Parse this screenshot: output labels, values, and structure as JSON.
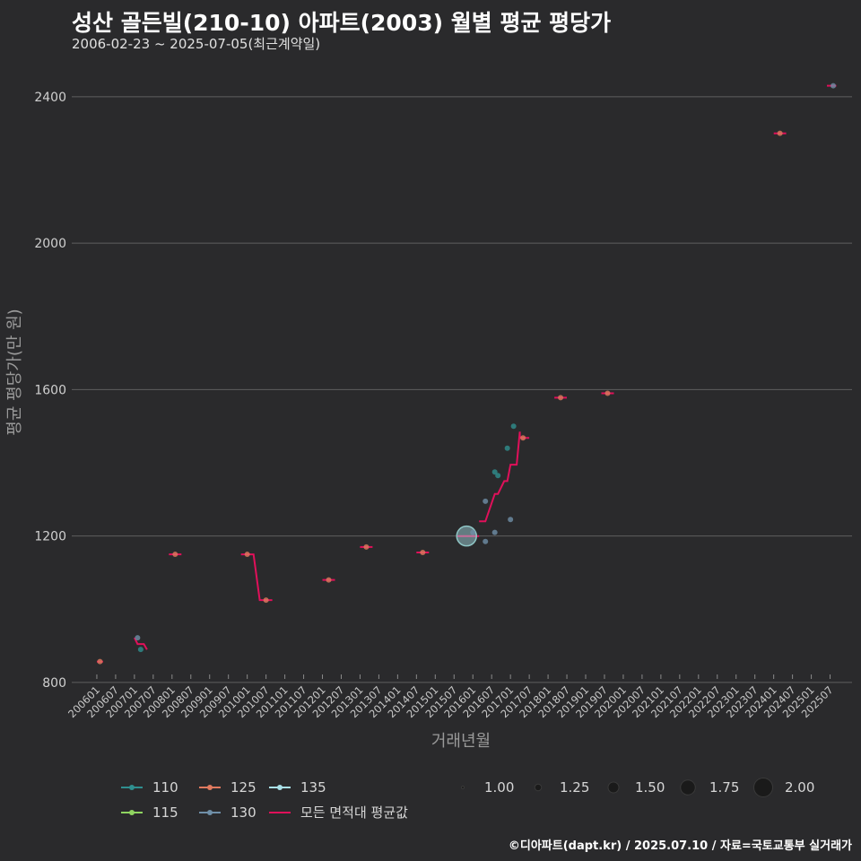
{
  "title": "성산 골든빌(210-10) 아파트(2003) 월별 평균 평당가",
  "subtitle": "2006-02-23 ~ 2025-07-05(최근계약일)",
  "credit": "©디아파트(dapt.kr) / 2025.07.10 / 자료=국토교통부 실거래가",
  "colors": {
    "background": "#2a2a2c",
    "grid": "#5f5f5f",
    "avg_line": "#e0105a",
    "110": "#2f8f8f",
    "115": "#8fd460",
    "125": "#e07a5f",
    "130": "#6f8fa8",
    "135": "#a9e0e8"
  },
  "chart_data": {
    "type": "scatter",
    "xlabel": "거래년월",
    "ylabel": "평균 평당가(만 원)",
    "ylim": [
      790,
      2505
    ],
    "yticks": [
      800,
      1200,
      1600,
      2000,
      2400
    ],
    "x_range_months": [
      -8,
      241
    ],
    "x_tick_labels": [
      "200601",
      "200607",
      "200701",
      "200707",
      "200801",
      "200807",
      "200901",
      "200907",
      "201001",
      "201007",
      "201101",
      "201107",
      "201201",
      "201207",
      "201301",
      "201307",
      "201401",
      "201407",
      "201501",
      "201507",
      "201601",
      "201607",
      "201701",
      "201707",
      "201801",
      "201807",
      "201901",
      "201907",
      "202001",
      "202007",
      "202101",
      "202107",
      "202201",
      "202207",
      "202301",
      "202307",
      "202401",
      "202407",
      "202501",
      "202507"
    ],
    "color_legend": [
      {
        "name": "110",
        "series": "110"
      },
      {
        "name": "115",
        "series": "115"
      },
      {
        "name": "125",
        "series": "125"
      },
      {
        "name": "130",
        "series": "130"
      },
      {
        "name": "135",
        "series": "135"
      },
      {
        "name": "모든 면적대 평균값",
        "series": "avg"
      }
    ],
    "size_legend": [
      1.0,
      1.25,
      1.5,
      1.75,
      2.0
    ],
    "size_legend_labels": [
      "1.00",
      "1.25",
      "1.50",
      "1.75",
      "2.00"
    ],
    "points": [
      {
        "series": "125",
        "month": 1,
        "value": 857,
        "count": 1
      },
      {
        "series": "130",
        "month": 13,
        "value": 922,
        "count": 1
      },
      {
        "series": "110",
        "month": 14,
        "value": 890,
        "count": 1
      },
      {
        "series": "125",
        "month": 25,
        "value": 1150,
        "count": 1
      },
      {
        "series": "125",
        "month": 48,
        "value": 1150,
        "count": 1
      },
      {
        "series": "125",
        "month": 54,
        "value": 1025,
        "count": 1
      },
      {
        "series": "125",
        "month": 74,
        "value": 1080,
        "count": 1
      },
      {
        "series": "125",
        "month": 86,
        "value": 1170,
        "count": 1
      },
      {
        "series": "125",
        "month": 104,
        "value": 1155,
        "count": 1
      },
      {
        "series": "135",
        "month": 118,
        "value": 1200,
        "count": 2
      },
      {
        "series": "130",
        "month": 120,
        "value": 1210,
        "count": 1
      },
      {
        "series": "130",
        "month": 124,
        "value": 1185,
        "count": 1
      },
      {
        "series": "130",
        "month": 124,
        "value": 1295,
        "count": 1
      },
      {
        "series": "130",
        "month": 127,
        "value": 1210,
        "count": 1
      },
      {
        "series": "110",
        "month": 127,
        "value": 1375,
        "count": 1
      },
      {
        "series": "110",
        "month": 128,
        "value": 1365,
        "count": 1
      },
      {
        "series": "110",
        "month": 131,
        "value": 1440,
        "count": 1
      },
      {
        "series": "130",
        "month": 132,
        "value": 1245,
        "count": 1
      },
      {
        "series": "110",
        "month": 133,
        "value": 1500,
        "count": 1
      },
      {
        "series": "125",
        "month": 136,
        "value": 1468,
        "count": 1
      },
      {
        "series": "125",
        "month": 148,
        "value": 1578,
        "count": 1
      },
      {
        "series": "125",
        "month": 163,
        "value": 1590,
        "count": 1
      },
      {
        "series": "125",
        "month": 218,
        "value": 2300,
        "count": 1
      },
      {
        "series": "130",
        "month": 235,
        "value": 2430,
        "count": 1
      }
    ],
    "avg_segments": [
      [
        [
          0,
          857
        ],
        [
          2,
          857
        ]
      ],
      [
        [
          12,
          922
        ],
        [
          13,
          905
        ],
        [
          15,
          905
        ],
        [
          16,
          890
        ]
      ],
      [
        [
          23,
          1150
        ],
        [
          27,
          1150
        ]
      ],
      [
        [
          46,
          1150
        ],
        [
          50,
          1150
        ],
        [
          52,
          1025
        ],
        [
          56,
          1025
        ]
      ],
      [
        [
          72,
          1080
        ],
        [
          76,
          1080
        ]
      ],
      [
        [
          84,
          1170
        ],
        [
          88,
          1170
        ]
      ],
      [
        [
          102,
          1155
        ],
        [
          106,
          1155
        ]
      ],
      [
        [
          115,
          1200
        ],
        [
          122,
          1200
        ]
      ],
      [
        [
          122,
          1240
        ],
        [
          124,
          1240
        ],
        [
          127,
          1315
        ],
        [
          128,
          1315
        ],
        [
          130,
          1350
        ],
        [
          131,
          1350
        ],
        [
          132,
          1395
        ],
        [
          134,
          1395
        ],
        [
          135,
          1485
        ],
        [
          135,
          1468
        ],
        [
          138,
          1468
        ]
      ],
      [
        [
          146,
          1578
        ],
        [
          150,
          1578
        ]
      ],
      [
        [
          161,
          1590
        ],
        [
          165,
          1590
        ]
      ],
      [
        [
          216,
          2300
        ],
        [
          220,
          2300
        ]
      ],
      [
        [
          233,
          2430
        ],
        [
          236,
          2430
        ]
      ]
    ]
  }
}
